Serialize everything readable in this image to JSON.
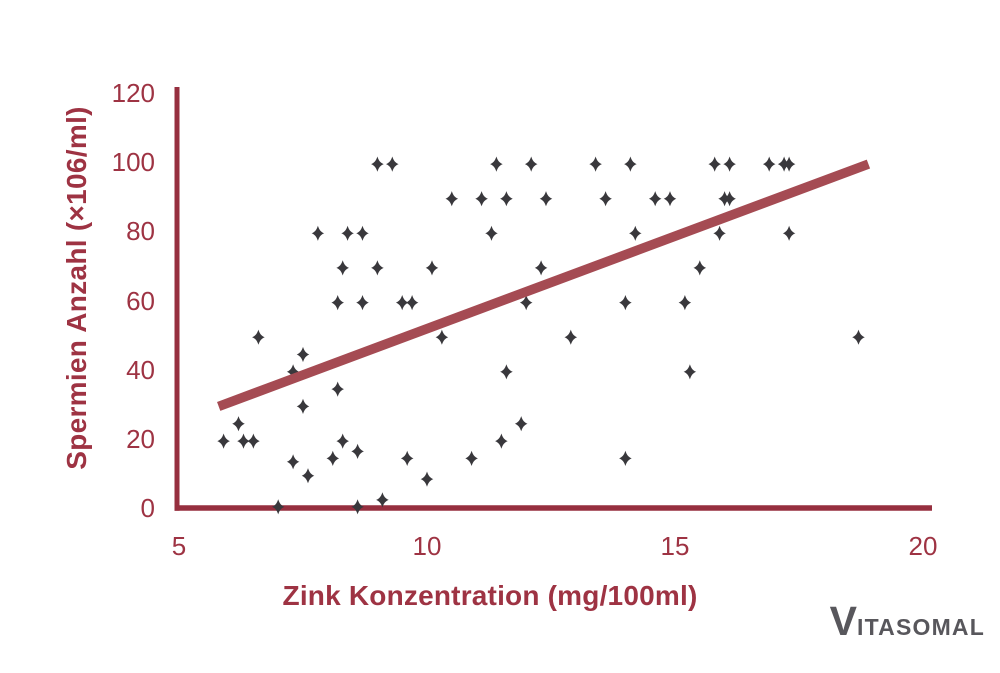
{
  "branding": {
    "logo": "Vitasomal",
    "logo_initial": "V",
    "logo_rest": "ITASOMAL",
    "logo_color": "#58575C"
  },
  "chart_data": {
    "type": "scatter",
    "title": "",
    "xlabel": "Zink Konzentration (mg/100ml)",
    "ylabel": "Spermien Anzahl (×106/ml)",
    "xlim": [
      5,
      20
    ],
    "ylim": [
      0,
      120
    ],
    "x_ticks": [
      "5",
      "10",
      "15",
      "20"
    ],
    "x_tick_values": [
      5,
      10,
      15,
      20
    ],
    "y_ticks": [
      "0",
      "20",
      "40",
      "60",
      "80",
      "100",
      "120"
    ],
    "y_tick_values": [
      0,
      20,
      40,
      60,
      80,
      100,
      120
    ],
    "grid": false,
    "legend": "none",
    "marker": "four-point-diamond",
    "colors": {
      "axis": "#962F3F",
      "text": "#9E3343",
      "trend": "#A54B53",
      "points": "#39383C"
    },
    "trendline": {
      "x1": 5.8,
      "y1": 30,
      "x2": 18.9,
      "y2": 100
    },
    "points": [
      [
        9.0,
        100
      ],
      [
        9.3,
        100
      ],
      [
        11.4,
        100
      ],
      [
        12.1,
        100
      ],
      [
        13.4,
        100
      ],
      [
        14.1,
        100
      ],
      [
        15.8,
        100
      ],
      [
        16.1,
        100
      ],
      [
        16.9,
        100
      ],
      [
        17.2,
        100
      ],
      [
        17.3,
        100
      ],
      [
        10.5,
        90
      ],
      [
        11.1,
        90
      ],
      [
        11.6,
        90
      ],
      [
        12.4,
        90
      ],
      [
        13.6,
        90
      ],
      [
        14.6,
        90
      ],
      [
        14.9,
        90
      ],
      [
        16.0,
        90
      ],
      [
        16.1,
        90
      ],
      [
        7.8,
        80
      ],
      [
        8.4,
        80
      ],
      [
        8.7,
        80
      ],
      [
        11.3,
        80
      ],
      [
        14.2,
        80
      ],
      [
        15.9,
        80
      ],
      [
        17.3,
        80
      ],
      [
        8.3,
        70
      ],
      [
        9.0,
        70
      ],
      [
        10.1,
        70
      ],
      [
        12.3,
        70
      ],
      [
        15.5,
        70
      ],
      [
        8.2,
        60
      ],
      [
        8.7,
        60
      ],
      [
        9.5,
        60
      ],
      [
        9.7,
        60
      ],
      [
        12.0,
        60
      ],
      [
        14.0,
        60
      ],
      [
        15.2,
        60
      ],
      [
        6.6,
        50
      ],
      [
        10.3,
        50
      ],
      [
        12.9,
        50
      ],
      [
        18.7,
        50
      ],
      [
        7.5,
        45
      ],
      [
        7.3,
        40
      ],
      [
        11.6,
        40
      ],
      [
        15.3,
        40
      ],
      [
        8.2,
        35
      ],
      [
        7.5,
        30
      ],
      [
        6.2,
        25
      ],
      [
        11.9,
        25
      ],
      [
        5.9,
        20
      ],
      [
        6.3,
        20
      ],
      [
        6.5,
        20
      ],
      [
        8.3,
        20
      ],
      [
        11.5,
        20
      ],
      [
        8.6,
        17
      ],
      [
        8.1,
        15
      ],
      [
        9.6,
        15
      ],
      [
        10.9,
        15
      ],
      [
        14.0,
        15
      ],
      [
        7.3,
        14
      ],
      [
        7.6,
        10
      ],
      [
        10.0,
        9
      ],
      [
        7.0,
        1
      ],
      [
        8.6,
        1
      ],
      [
        9.1,
        3
      ]
    ]
  }
}
